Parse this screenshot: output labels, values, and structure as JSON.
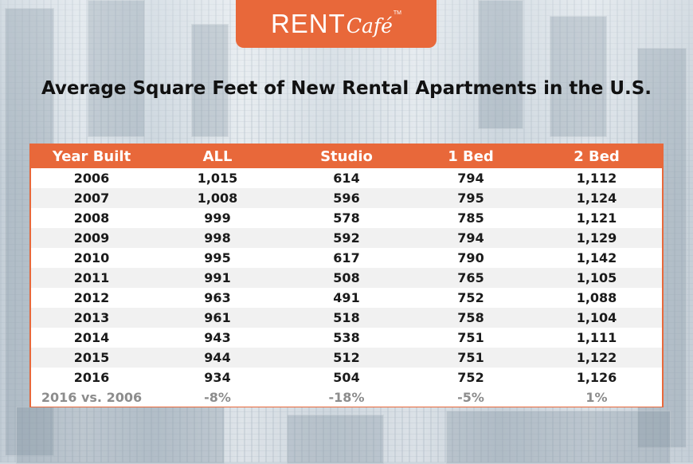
{
  "brand": {
    "logo_rent": "RENT",
    "logo_cafe": "Café",
    "logo_tm": "TM",
    "accent": "#e8683a"
  },
  "chart_data": {
    "type": "table",
    "title": "Average Square Feet of New Rental Apartments in the U.S.",
    "columns": [
      "Year Built",
      "ALL",
      "Studio",
      "1 Bed",
      "2 Bed"
    ],
    "rows": [
      [
        "2006",
        "1,015",
        "614",
        "794",
        "1,112"
      ],
      [
        "2007",
        "1,008",
        "596",
        "795",
        "1,124"
      ],
      [
        "2008",
        "999",
        "578",
        "785",
        "1,121"
      ],
      [
        "2009",
        "998",
        "592",
        "794",
        "1,129"
      ],
      [
        "2010",
        "995",
        "617",
        "790",
        "1,142"
      ],
      [
        "2011",
        "991",
        "508",
        "765",
        "1,105"
      ],
      [
        "2012",
        "963",
        "491",
        "752",
        "1,088"
      ],
      [
        "2013",
        "961",
        "518",
        "758",
        "1,104"
      ],
      [
        "2014",
        "943",
        "538",
        "751",
        "1,111"
      ],
      [
        "2015",
        "944",
        "512",
        "751",
        "1,122"
      ],
      [
        "2016",
        "934",
        "504",
        "752",
        "1,126"
      ]
    ],
    "summary_row": [
      "2016 vs. 2006",
      "-8%",
      "-18%",
      "-5%",
      "1%"
    ]
  }
}
